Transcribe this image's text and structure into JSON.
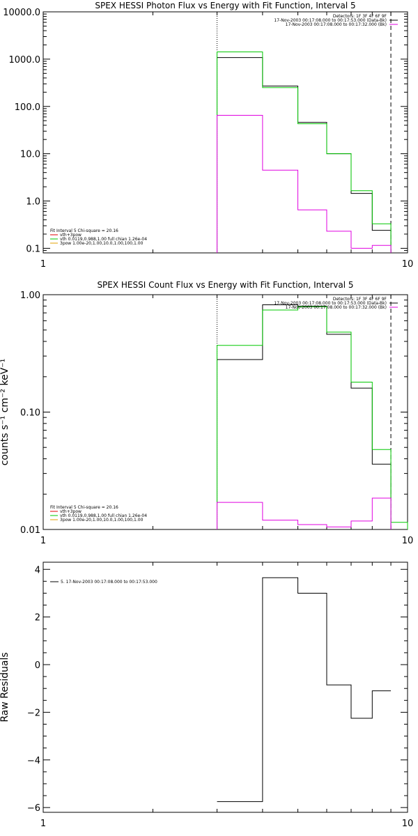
{
  "chart_data": [
    {
      "type": "line",
      "title": "SPEX HESSI Photon Flux vs Energy with Fit Function, Interval 5",
      "xlabel": "",
      "ylabel": "",
      "x_scale": "log",
      "y_scale": "log",
      "xlim": [
        1,
        10
      ],
      "ylim": [
        0.08,
        10000
      ],
      "x_tick_labels": [
        "1",
        "10"
      ],
      "y_ticks": [
        0.1,
        1,
        10,
        100,
        1000,
        10000
      ],
      "y_tick_labels": [
        "0.1",
        "1.0",
        "10.0",
        "100.0",
        "1000.0",
        "10000.0"
      ],
      "vlines": [
        {
          "x": 3.0,
          "style": "dotted"
        },
        {
          "x": 9.0,
          "style": "dashed"
        }
      ],
      "legend_top_right": [
        "Detectors: 1F 3F 4F 6F 9F",
        "17-Nov-2003 00:17:08.000 to 00:17:53.000 (Data-Bk)",
        "17-Nov-2003 00:17:08.000 to 00:17:32.000 (Bk)"
      ],
      "legend_bottom_left": [
        "Fit Interval 5   Chi-square = 20.16",
        "vth+3pow",
        "vth 0.0119,0.988,1.00  full chian 1.26e-04",
        "3pow 1.00e-20,1.00,10.0,1.00,100,1.00"
      ],
      "series": [
        {
          "name": "Data-Bk",
          "color": "#000000",
          "edges": [
            3,
            4,
            5,
            6,
            7,
            8,
            9
          ],
          "values": [
            1080,
            270,
            46,
            10,
            1.45,
            0.24
          ]
        },
        {
          "name": "vth+3pow",
          "color": "#00c800",
          "edges": [
            3,
            4,
            5,
            6,
            7,
            8,
            9
          ],
          "values": [
            1420,
            250,
            43,
            10,
            1.65,
            0.33
          ]
        },
        {
          "name": "Bk",
          "color": "#e000e0",
          "edges": [
            3,
            4,
            5,
            6,
            7,
            8,
            9
          ],
          "values": [
            65,
            4.5,
            0.65,
            0.23,
            0.1,
            0.115
          ]
        }
      ]
    },
    {
      "type": "line",
      "title": "SPEX HESSI Count Flux vs Energy with Fit Function, Interval 5",
      "xlabel": "",
      "ylabel": "counts s⁻¹ cm⁻² keV⁻¹",
      "x_scale": "log",
      "y_scale": "log",
      "xlim": [
        1,
        10
      ],
      "ylim": [
        0.01,
        1
      ],
      "x_tick_labels": [
        "1",
        "10"
      ],
      "y_ticks": [
        0.01,
        0.1,
        1
      ],
      "y_tick_labels": [
        "0.01",
        "0.10",
        "1.00"
      ],
      "vlines": [
        {
          "x": 3.0,
          "style": "dotted"
        },
        {
          "x": 9.0,
          "style": "dashed"
        }
      ],
      "legend_top_right": [
        "Detectors: 1F 3F 4F 6F 9F",
        "17-Nov-2003 00:17:08.000 to 00:17:53.000 (Data-Bk)",
        "17-Nov-2003 00:17:08.000 to 00:17:32.000 (Bk)"
      ],
      "legend_bottom_left": [
        "Fit Interval 5   Chi-square = 20.16",
        "vth+3pow",
        "vth 0.0119,0.988,1.00  full chian 1.26e-04",
        "3pow 1.00e-20,1.00,10.0,1.00,100,1.00"
      ],
      "series": [
        {
          "name": "Data-Bk",
          "color": "#000000",
          "edges": [
            3,
            4,
            5,
            6,
            7,
            8,
            9
          ],
          "values": [
            0.28,
            0.82,
            0.8,
            0.46,
            0.16,
            0.036
          ]
        },
        {
          "name": "vth+3pow",
          "color": "#00c800",
          "edges": [
            3,
            4,
            5,
            6,
            7,
            8,
            9,
            10
          ],
          "values": [
            0.37,
            0.74,
            0.79,
            0.48,
            0.18,
            0.048,
            0.0115
          ]
        },
        {
          "name": "Bk",
          "color": "#e000e0",
          "edges": [
            3,
            4,
            5,
            6,
            7,
            8,
            9
          ],
          "values": [
            0.017,
            0.012,
            0.011,
            0.0105,
            0.0118,
            0.0185
          ]
        }
      ]
    },
    {
      "type": "line",
      "title": "",
      "xlabel": "",
      "ylabel": "Raw Residuals",
      "x_scale": "log",
      "y_scale": "linear",
      "xlim": [
        1,
        10
      ],
      "ylim": [
        -6.2,
        4.3
      ],
      "x_tick_labels": [
        "1",
        "10"
      ],
      "y_ticks": [
        -6,
        -4,
        -2,
        0,
        2,
        4
      ],
      "y_tick_labels": [
        "−6",
        "−4",
        "−2",
        "0",
        "2",
        "4"
      ],
      "legend_top_left": [
        "5. 17-Nov-2003 00:17:08.000 to 00:17:53.000"
      ],
      "series": [
        {
          "name": "5. 17-Nov-2003 00:17:08.000 to 00:17:53.000",
          "color": "#000000",
          "edges": [
            3,
            4,
            5,
            6,
            7,
            8,
            9
          ],
          "values": [
            -5.75,
            3.65,
            3.0,
            -0.85,
            -2.25,
            -1.1
          ]
        }
      ]
    }
  ]
}
